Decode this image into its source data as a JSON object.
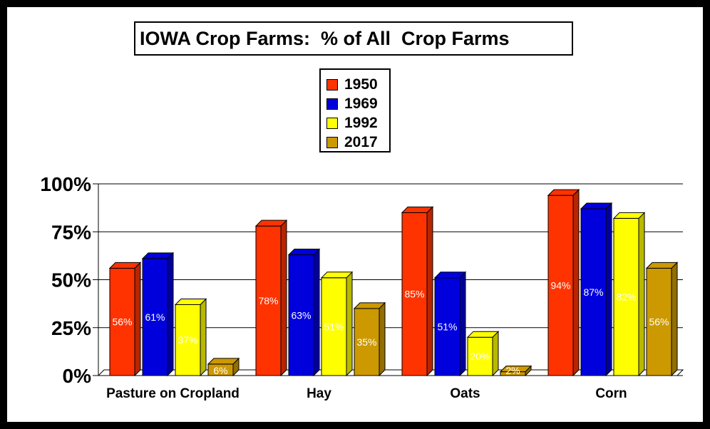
{
  "chart_data": {
    "type": "bar",
    "title": "IOWA Crop Farms:  % of All  Crop Farms",
    "categories": [
      "Pasture on Cropland",
      "Hay",
      "Oats",
      "Corn"
    ],
    "series": [
      {
        "name": "1950",
        "color": "#ff3300",
        "values": [
          56,
          78,
          85,
          94
        ],
        "labels": [
          "56%",
          "78%",
          "85%",
          "94%"
        ]
      },
      {
        "name": "1969",
        "color": "#0000dd",
        "values": [
          61,
          63,
          51,
          87
        ],
        "labels": [
          "61%",
          "63%",
          "51%",
          "87%"
        ]
      },
      {
        "name": "1992",
        "color": "#ffff00",
        "values": [
          37,
          51,
          20,
          82
        ],
        "labels": [
          "37%",
          "51%",
          "20%",
          "82%"
        ]
      },
      {
        "name": "2017",
        "color": "#cc9900",
        "values": [
          6,
          35,
          2,
          56
        ],
        "labels": [
          "6%",
          "35%",
          "2%",
          "56%"
        ]
      }
    ],
    "ylim": [
      0,
      100
    ],
    "yticks": [
      0,
      25,
      50,
      75,
      100
    ],
    "ytick_labels": [
      "0%",
      "25%",
      "50%",
      "75%",
      "100%"
    ],
    "grid": true,
    "legend_position": "top-center"
  }
}
